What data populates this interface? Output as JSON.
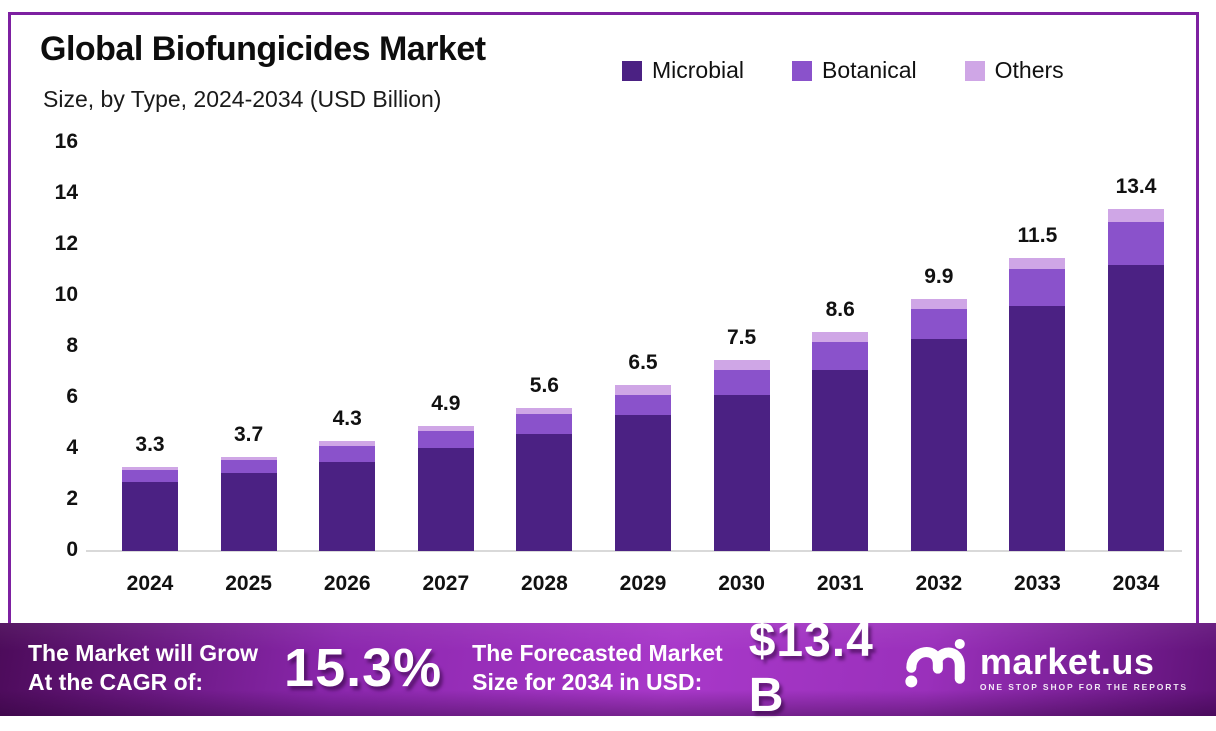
{
  "header": {
    "title": "Global Biofungicides Market",
    "subtitle": "Size, by Type, 2024-2034 (USD Billion)"
  },
  "colors": {
    "microbial": "#4b2183",
    "botanical": "#8a52cb",
    "others": "#cfa6e6",
    "frame_border": "#7d20a1",
    "axis_line": "#d9d9d9",
    "label_text": "#111111",
    "banner_text": "#ffffff",
    "banner_gradient": [
      "#4c0b5a",
      "#a838c9",
      "#5f1277"
    ]
  },
  "chart_data": {
    "type": "bar",
    "stacked": true,
    "title": "Global Biofungicides Market Size, by Type, 2024-2034 (USD Billion)",
    "categories": [
      "2024",
      "2025",
      "2026",
      "2027",
      "2028",
      "2029",
      "2030",
      "2031",
      "2032",
      "2033",
      "2034"
    ],
    "series": [
      {
        "name": "Microbial",
        "color": "#4b2183",
        "values": [
          2.7,
          3.05,
          3.5,
          4.05,
          4.6,
          5.35,
          6.1,
          7.1,
          8.3,
          9.6,
          11.2
        ]
      },
      {
        "name": "Botanical",
        "color": "#8a52cb",
        "values": [
          0.48,
          0.5,
          0.62,
          0.65,
          0.78,
          0.75,
          1.0,
          1.1,
          1.2,
          1.45,
          1.7
        ]
      },
      {
        "name": "Others",
        "color": "#cfa6e6",
        "values": [
          0.12,
          0.15,
          0.18,
          0.2,
          0.22,
          0.4,
          0.4,
          0.4,
          0.4,
          0.45,
          0.5
        ]
      }
    ],
    "totals": [
      3.3,
      3.7,
      4.3,
      4.9,
      5.6,
      6.5,
      7.5,
      8.6,
      9.9,
      11.5,
      13.4
    ],
    "xlabel": "",
    "ylabel": "",
    "ylim": [
      0,
      16
    ],
    "ytick_step": 2,
    "grid": false,
    "legend_position": "top-right"
  },
  "banner": {
    "cagr_label_line1": "The Market will Grow",
    "cagr_label_line2": "At the CAGR of:",
    "cagr_value": "15.3%",
    "forecast_label_line1": "The Forecasted Market",
    "forecast_label_line2": "Size for 2034 in USD:",
    "forecast_value": "$13.4 B",
    "brand": {
      "name": "market.us",
      "tagline": "ONE STOP SHOP FOR THE REPORTS"
    }
  }
}
